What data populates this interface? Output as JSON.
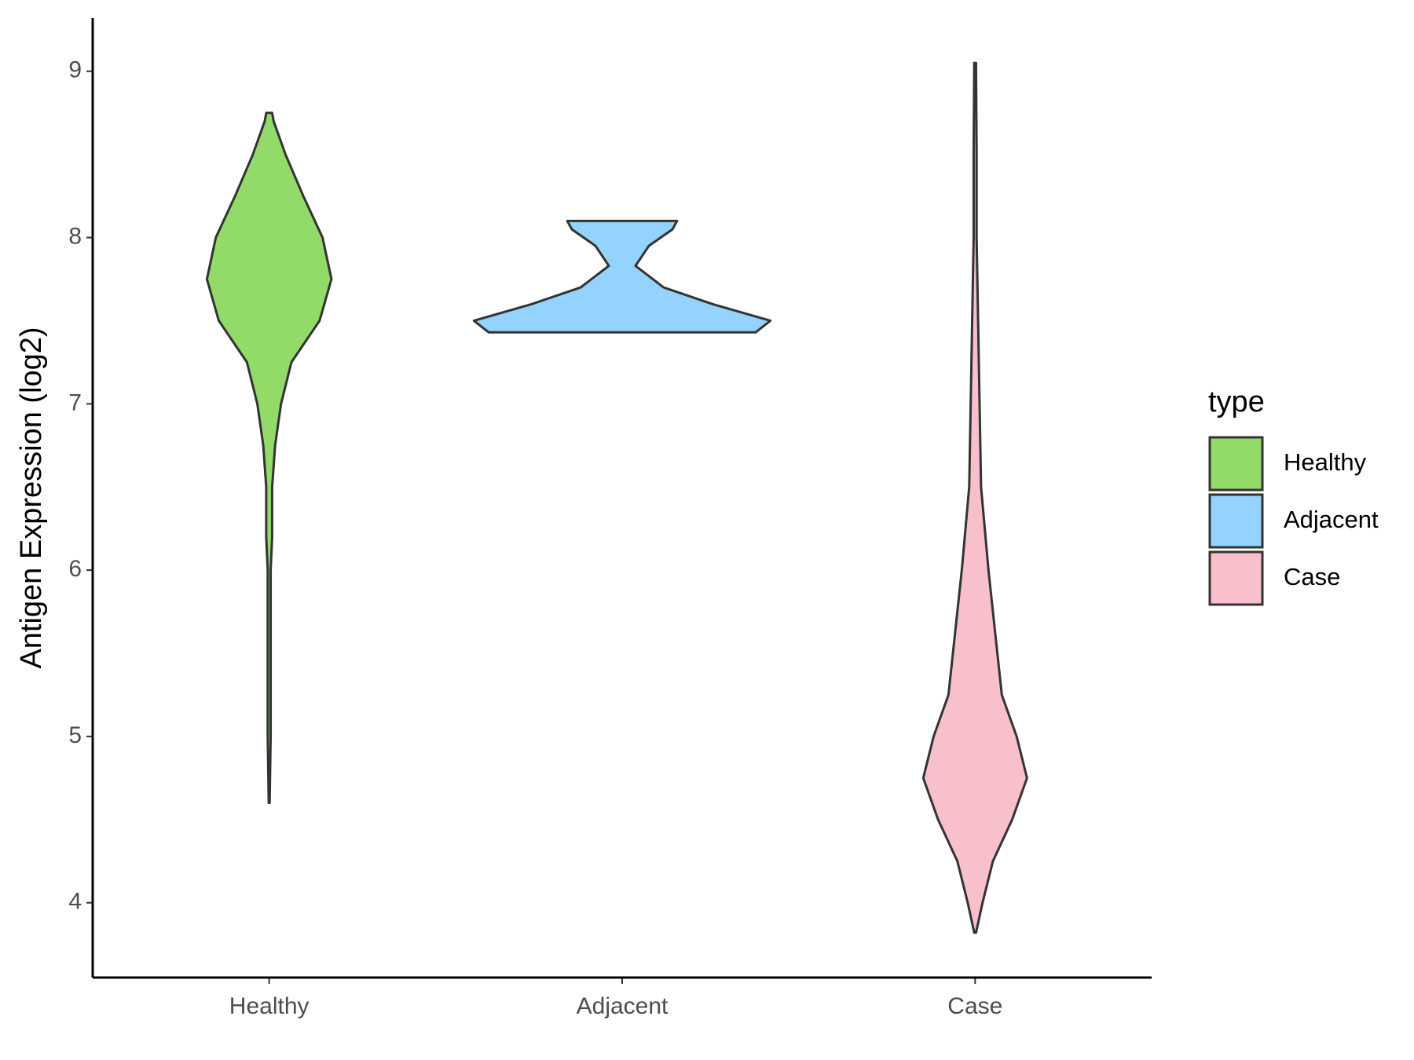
{
  "chart_data": {
    "type": "violin",
    "y_label": "Antigen Expression (log2)",
    "legend_title": "type",
    "legend_position": "right",
    "categories": [
      "Healthy",
      "Adjacent",
      "Case"
    ],
    "ylim": [
      3.55,
      9.32
    ],
    "yticks": [
      4,
      5,
      6,
      7,
      8,
      9
    ],
    "series": [
      {
        "name": "Healthy",
        "color": "#93db69",
        "y": [
          4.6,
          5,
          5.5,
          6,
          6.2,
          6.5,
          6.75,
          7,
          7.25,
          7.5,
          7.75,
          8,
          8.25,
          8.5,
          8.7,
          8.75
        ],
        "density": [
          0.003,
          0.01,
          0.01,
          0.01,
          0.02,
          0.02,
          0.04,
          0.08,
          0.15,
          0.34,
          0.42,
          0.36,
          0.23,
          0.11,
          0.03,
          0.02
        ]
      },
      {
        "name": "Adjacent",
        "color": "#93d3fd",
        "y": [
          7.43,
          7.5,
          7.6,
          7.7,
          7.83,
          7.95,
          8.05,
          8.1
        ],
        "density": [
          0.9,
          1,
          0.61,
          0.28,
          0.09,
          0.18,
          0.34,
          0.37
        ]
      },
      {
        "name": "Case",
        "color": "#f7c0cb",
        "y": [
          3.82,
          4,
          4.25,
          4.5,
          4.75,
          5,
          5.25,
          5.5,
          6,
          6.5,
          7,
          7.5,
          8,
          8.5,
          9.05
        ],
        "density": [
          0.006,
          0.05,
          0.12,
          0.25,
          0.35,
          0.28,
          0.18,
          0.15,
          0.09,
          0.04,
          0.03,
          0.02,
          0.01,
          0.01,
          0.006
        ]
      }
    ]
  }
}
